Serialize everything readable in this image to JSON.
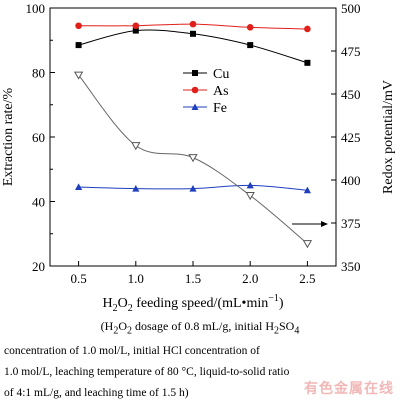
{
  "chart_data": {
    "type": "line",
    "x": [
      0.5,
      1.0,
      1.5,
      2.0,
      2.5
    ],
    "xlim": [
      0.25,
      2.75
    ],
    "xticks": [
      0.5,
      1.0,
      1.5,
      2.0,
      2.5
    ],
    "ylim": [
      20,
      100
    ],
    "yticks": [
      20,
      40,
      60,
      80,
      100
    ],
    "y2lim": [
      350,
      500
    ],
    "y2ticks": [
      350,
      375,
      400,
      425,
      450,
      475,
      500
    ],
    "ylabel": "Extraction rate/%",
    "y2label": "Redox potential/mV",
    "xlabel_pre": "H",
    "xlabel_sub1": "2",
    "xlabel_mid": "O",
    "xlabel_sub2": "2",
    "xlabel_post": " feeding speed/(mL•min",
    "xlabel_sup": "−1",
    "xlabel_end": ")",
    "series": [
      {
        "name": "Cu",
        "axis": "left",
        "marker": "square",
        "color": "#000000",
        "values": [
          88.5,
          93,
          92,
          88.5,
          83
        ]
      },
      {
        "name": "As",
        "axis": "left",
        "marker": "circle",
        "color": "#e0201b",
        "values": [
          94.5,
          94.5,
          95,
          94,
          93.5
        ]
      },
      {
        "name": "Fe",
        "axis": "left",
        "marker": "triangle",
        "color": "#1f3fbf",
        "values": [
          44.5,
          44,
          44,
          45,
          43.5
        ]
      },
      {
        "name": "",
        "axis": "right",
        "marker": "open-triangle-down",
        "color": "#555555",
        "values": [
          461,
          420,
          413,
          391,
          363
        ]
      }
    ],
    "legend_position": "top-right"
  },
  "caption": {
    "line1_a": "(H",
    "line1_sub1": "2",
    "line1_b": "O",
    "line1_sub2": "2",
    "line1_c": " dosage of 0.8 mL/g, initial H",
    "line1_sub3": "2",
    "line1_d": "SO",
    "line1_sub4": "4",
    "line2": "concentration of 1.0 mol/L, initial HCl concentration of",
    "line3": "1.0 mol/L, leaching temperature of 80 °C, liquid-to-solid ratio",
    "line4": "of 4:1 mL/g, and leaching time of 1.5 h)"
  },
  "watermark": "有色金属在线"
}
